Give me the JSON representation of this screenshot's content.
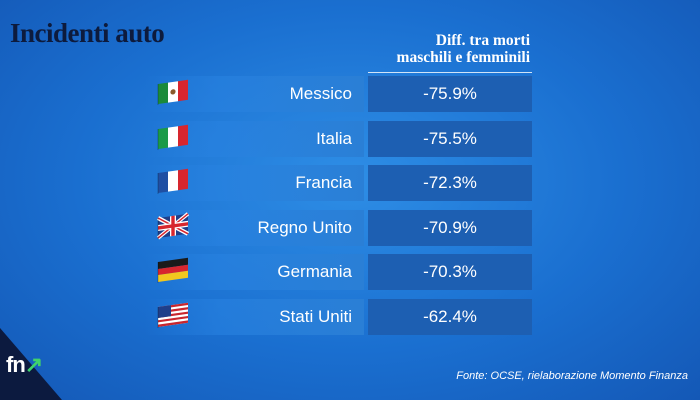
{
  "title": "Incidenti auto",
  "column_header_line1": "Diff. tra morti",
  "column_header_line2": "maschili e femminili",
  "rows": [
    {
      "country": "Messico",
      "value_label": "-75.9%",
      "flag": "mexico-flag"
    },
    {
      "country": "Italia",
      "value_label": "-75.5%",
      "flag": "italy-flag"
    },
    {
      "country": "Francia",
      "value_label": "-72.3%",
      "flag": "france-flag"
    },
    {
      "country": "Regno Unito",
      "value_label": "-70.9%",
      "flag": "uk-flag"
    },
    {
      "country": "Germania",
      "value_label": "-70.3%",
      "flag": "germany-flag"
    },
    {
      "country": "Stati Uniti",
      "value_label": "-62.4%",
      "flag": "usa-flag"
    }
  ],
  "source": "Fonte: OCSE, rielaborazione Momento Finanza",
  "logo": {
    "text": "fn",
    "arrow": "↗"
  },
  "colors": {
    "background": "#1a6fd0",
    "title": "#0d1b3d",
    "value_box": "#1d5fb2",
    "text": "#ffffff",
    "logo_accent": "#3fd26b"
  },
  "chart_data": {
    "type": "table",
    "title": "Incidenti auto",
    "columns": [
      "",
      "Diff. tra morti maschili e femminili"
    ],
    "categories": [
      "Messico",
      "Italia",
      "Francia",
      "Regno Unito",
      "Germania",
      "Stati Uniti"
    ],
    "values": [
      -75.9,
      -75.5,
      -72.3,
      -70.9,
      -70.3,
      -62.4
    ],
    "unit": "%"
  }
}
